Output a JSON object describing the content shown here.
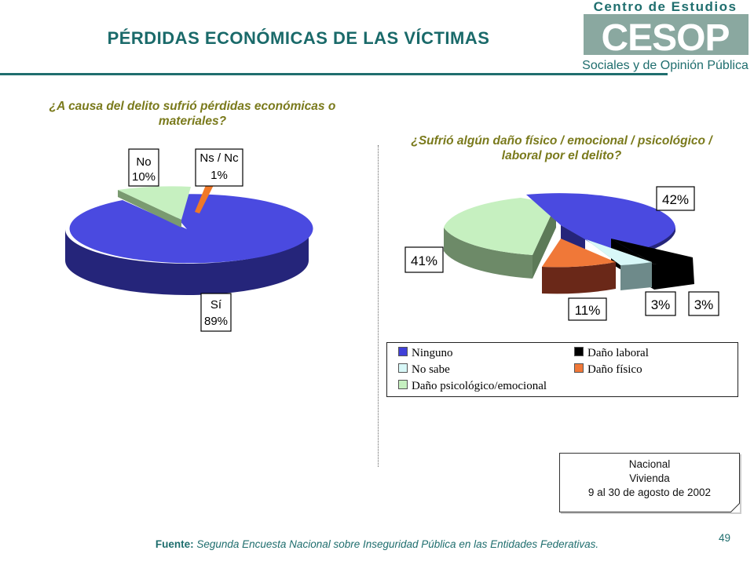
{
  "title": "PÉRDIDAS ECONÓMICAS DE LAS VÍCTIMAS",
  "logo": {
    "line1": "Centro de Estudios",
    "mark": "CESOP",
    "line2": "Sociales y de Opinión Pública",
    "color": "#1f6e6e"
  },
  "chart_data": [
    {
      "type": "pie",
      "title": "¿A causa del delito sufrió pérdidas económicas o materiales?",
      "slices": [
        {
          "label": "Sí",
          "value": 89,
          "display": "89%",
          "color": "#4040d8"
        },
        {
          "label": "No",
          "value": 10,
          "display": "10%",
          "color": "#c6f0c0"
        },
        {
          "label": "Ns / Nc",
          "value": 1,
          "display": "1%",
          "color": "#f07828"
        }
      ]
    },
    {
      "type": "pie",
      "title": "¿Sufrió algún daño físico / emocional / psicológico / laboral por el delito?",
      "legend_position": "bottom",
      "slices": [
        {
          "label": "Ninguno",
          "value": 42,
          "display": "42%",
          "color": "#4040d8"
        },
        {
          "label": "Daño laboral",
          "value": 3,
          "display": "3%",
          "color": "#000000"
        },
        {
          "label": "No sabe",
          "value": 3,
          "display": "3%",
          "color": "#d8f8f8"
        },
        {
          "label": "Daño físico",
          "value": 11,
          "display": "11%",
          "color": "#f07838"
        },
        {
          "label": "Daño psicológico/emocional",
          "value": 41,
          "display": "41%",
          "color": "#c6f0c0"
        }
      ]
    }
  ],
  "note": {
    "line1": "Nacional",
    "line2": "Vivienda",
    "line3": "9 al 30 de agosto de 2002"
  },
  "footer": {
    "label": "Fuente:",
    "text": "Segunda Encuesta Nacional sobre Inseguridad Pública en las Entidades Federativas."
  },
  "page_number": "49"
}
